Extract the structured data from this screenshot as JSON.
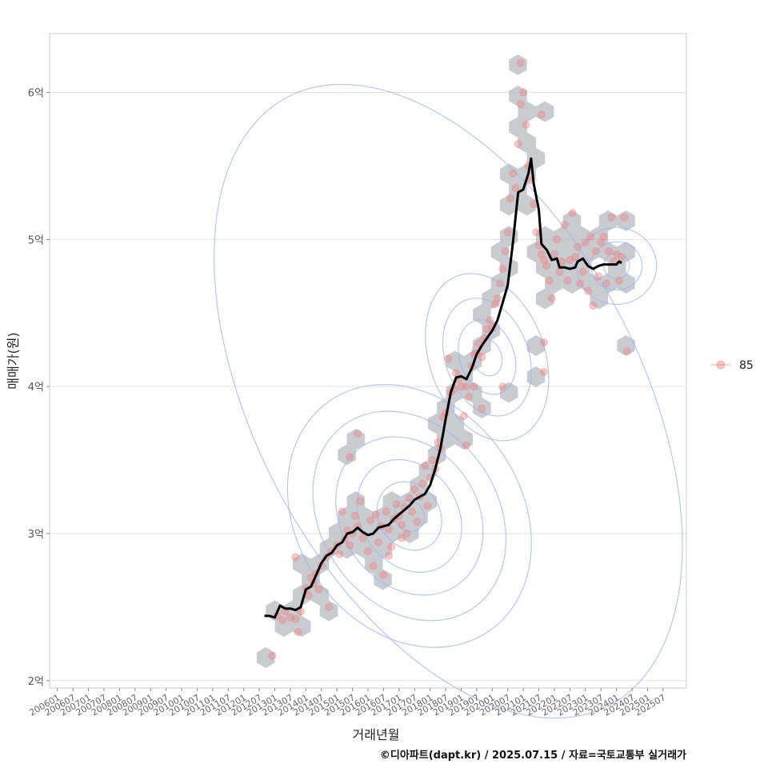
{
  "chart_data": {
    "type": "scatter",
    "xlabel": "거래년월",
    "ylabel": "매매가(원)",
    "x_ticks": [
      "200601",
      "200607",
      "200701",
      "200707",
      "200801",
      "200807",
      "200901",
      "200907",
      "201001",
      "201007",
      "201101",
      "201107",
      "201201",
      "201207",
      "201301",
      "201307",
      "201401",
      "201407",
      "201501",
      "201507",
      "201601",
      "201607",
      "201701",
      "201707",
      "201801",
      "201807",
      "201901",
      "201907",
      "202001",
      "202007",
      "202101",
      "202107",
      "202201",
      "202207",
      "202301",
      "202307",
      "202401",
      "202407",
      "202501",
      "202507"
    ],
    "y_ticks": [
      "2억",
      "3억",
      "4억",
      "5억",
      "6억"
    ],
    "y_tick_values": [
      2,
      3,
      4,
      5,
      6
    ],
    "y_unit": "억",
    "xlim": [
      "2005-10",
      "2026-04"
    ],
    "ylim": [
      1.95,
      6.4
    ],
    "grid": "horizontal",
    "legend": {
      "position": "right",
      "entries": [
        "85"
      ]
    },
    "caption": "©디아파트(dapt.kr) / 2025.07.15 / 자료=국토교통부 실거래가",
    "colors": {
      "points": "#f08080",
      "trend": "#000000",
      "density": "#9fb4ea",
      "hexbin": "#aab0b8"
    },
    "trend_line": [
      [
        "2012-09",
        2.44
      ],
      [
        "2012-11",
        2.44
      ],
      [
        "2013-01",
        2.43
      ],
      [
        "2013-03",
        2.51
      ],
      [
        "2013-05",
        2.49
      ],
      [
        "2013-07",
        2.49
      ],
      [
        "2013-09",
        2.48
      ],
      [
        "2013-11",
        2.5
      ],
      [
        "2014-01",
        2.62
      ],
      [
        "2014-03",
        2.64
      ],
      [
        "2014-05",
        2.72
      ],
      [
        "2014-07",
        2.8
      ],
      [
        "2014-09",
        2.85
      ],
      [
        "2014-11",
        2.87
      ],
      [
        "2015-01",
        2.92
      ],
      [
        "2015-03",
        2.94
      ],
      [
        "2015-05",
        3.0
      ],
      [
        "2015-07",
        3.01
      ],
      [
        "2015-09",
        3.04
      ],
      [
        "2015-11",
        3.01
      ],
      [
        "2016-01",
        2.99
      ],
      [
        "2016-03",
        3.0
      ],
      [
        "2016-05",
        3.04
      ],
      [
        "2016-07",
        3.05
      ],
      [
        "2016-09",
        3.06
      ],
      [
        "2016-11",
        3.1
      ],
      [
        "2017-01",
        3.13
      ],
      [
        "2017-03",
        3.16
      ],
      [
        "2017-05",
        3.19
      ],
      [
        "2017-07",
        3.23
      ],
      [
        "2017-09",
        3.25
      ],
      [
        "2017-11",
        3.27
      ],
      [
        "2018-01",
        3.33
      ],
      [
        "2018-03",
        3.44
      ],
      [
        "2018-05",
        3.58
      ],
      [
        "2018-07",
        3.78
      ],
      [
        "2018-09",
        3.96
      ],
      [
        "2018-11",
        4.06
      ],
      [
        "2019-01",
        4.07
      ],
      [
        "2019-03",
        4.05
      ],
      [
        "2019-05",
        4.12
      ],
      [
        "2019-07",
        4.22
      ],
      [
        "2019-09",
        4.28
      ],
      [
        "2019-11",
        4.33
      ],
      [
        "2020-01",
        4.38
      ],
      [
        "2020-03",
        4.45
      ],
      [
        "2020-05",
        4.57
      ],
      [
        "2020-07",
        4.69
      ],
      [
        "2020-09",
        4.98
      ],
      [
        "2020-11",
        5.32
      ],
      [
        "2021-01",
        5.34
      ],
      [
        "2021-03",
        5.45
      ],
      [
        "2021-04",
        5.55
      ],
      [
        "2021-05",
        5.38
      ],
      [
        "2021-07",
        5.2
      ],
      [
        "2021-08",
        4.97
      ],
      [
        "2021-10",
        4.93
      ],
      [
        "2021-12",
        4.86
      ],
      [
        "2022-02",
        4.87
      ],
      [
        "2022-03",
        4.81
      ],
      [
        "2022-05",
        4.81
      ],
      [
        "2022-07",
        4.8
      ],
      [
        "2022-09",
        4.81
      ],
      [
        "2022-10",
        4.85
      ],
      [
        "2022-12",
        4.87
      ],
      [
        "2023-02",
        4.82
      ],
      [
        "2023-04",
        4.8
      ],
      [
        "2023-06",
        4.82
      ],
      [
        "2023-08",
        4.83
      ],
      [
        "2023-10",
        4.83
      ],
      [
        "2024-01",
        4.83
      ],
      [
        "2024-02",
        4.85
      ],
      [
        "2024-03",
        4.84
      ]
    ],
    "points": [
      [
        "2012-12",
        2.17
      ],
      [
        "2013-02",
        2.44
      ],
      [
        "2013-04",
        2.41
      ],
      [
        "2013-05",
        2.47
      ],
      [
        "2013-07",
        2.43
      ],
      [
        "2013-09",
        2.42
      ],
      [
        "2013-10",
        2.33
      ],
      [
        "2013-11",
        2.47
      ],
      [
        "2014-01",
        2.63
      ],
      [
        "2014-02",
        2.58
      ],
      [
        "2014-03",
        2.7
      ],
      [
        "2014-04",
        2.66
      ],
      [
        "2014-05",
        2.73
      ],
      [
        "2014-06",
        2.62
      ],
      [
        "2014-07",
        2.78
      ],
      [
        "2014-09",
        2.84
      ],
      [
        "2014-10",
        2.5
      ],
      [
        "2014-11",
        2.88
      ],
      [
        "2015-01",
        2.92
      ],
      [
        "2015-02",
        2.86
      ],
      [
        "2015-03",
        3.15
      ],
      [
        "2015-04",
        2.96
      ],
      [
        "2015-05",
        3.02
      ],
      [
        "2015-06",
        2.92
      ],
      [
        "2015-07",
        3.0
      ],
      [
        "2015-08",
        3.12
      ],
      [
        "2015-09",
        3.05
      ],
      [
        "2015-10",
        3.22
      ],
      [
        "2015-11",
        2.97
      ],
      [
        "2016-01",
        2.88
      ],
      [
        "2016-02",
        3.09
      ],
      [
        "2016-03",
        2.78
      ],
      [
        "2016-04",
        3.13
      ],
      [
        "2016-05",
        2.94
      ],
      [
        "2016-06",
        3.05
      ],
      [
        "2016-07",
        2.72
      ],
      [
        "2016-08",
        3.15
      ],
      [
        "2016-09",
        3.03
      ],
      [
        "2016-10",
        2.91
      ],
      [
        "2016-11",
        3.1
      ],
      [
        "2016-12",
        3.2
      ],
      [
        "2017-01",
        3.12
      ],
      [
        "2017-02",
        3.06
      ],
      [
        "2017-03",
        3.18
      ],
      [
        "2017-04",
        3.0
      ],
      [
        "2017-05",
        3.24
      ],
      [
        "2017-06",
        3.15
      ],
      [
        "2017-07",
        3.3
      ],
      [
        "2017-08",
        3.08
      ],
      [
        "2017-09",
        3.25
      ],
      [
        "2017-10",
        3.34
      ],
      [
        "2017-11",
        3.46
      ],
      [
        "2017-12",
        3.19
      ],
      [
        "2018-01",
        3.38
      ],
      [
        "2018-02",
        3.5
      ],
      [
        "2018-03",
        3.44
      ],
      [
        "2018-04",
        3.62
      ],
      [
        "2018-05",
        3.58
      ],
      [
        "2018-06",
        3.79
      ],
      [
        "2018-07",
        3.82
      ],
      [
        "2018-08",
        4.19
      ],
      [
        "2018-09",
        3.96
      ],
      [
        "2018-10",
        3.98
      ],
      [
        "2018-11",
        4.09
      ],
      [
        "2018-12",
        4.05
      ],
      [
        "2019-01",
        4.0
      ],
      [
        "2019-02",
        3.8
      ],
      [
        "2019-03",
        4.0
      ],
      [
        "2019-04",
        3.93
      ],
      [
        "2019-05",
        4.14
      ],
      [
        "2019-06",
        4.22
      ],
      [
        "2019-07",
        4.23
      ],
      [
        "2019-08",
        4.29
      ],
      [
        "2019-09",
        4.2
      ],
      [
        "2019-10",
        4.33
      ],
      [
        "2019-11",
        4.39
      ],
      [
        "2019-12",
        4.45
      ],
      [
        "2020-01",
        4.4
      ],
      [
        "2020-02",
        4.56
      ],
      [
        "2020-03",
        4.6
      ],
      [
        "2020-04",
        4.7
      ],
      [
        "2020-05",
        4.8
      ],
      [
        "2020-06",
        4.92
      ],
      [
        "2020-07",
        5.05
      ],
      [
        "2020-08",
        5.28
      ],
      [
        "2020-09",
        5.45
      ],
      [
        "2020-10",
        5.35
      ],
      [
        "2020-11",
        5.65
      ],
      [
        "2020-12",
        5.92
      ],
      [
        "2021-01",
        6.0
      ],
      [
        "2021-02",
        5.78
      ],
      [
        "2021-03",
        5.5
      ],
      [
        "2021-04",
        5.4
      ],
      [
        "2021-05",
        5.24
      ],
      [
        "2021-06",
        5.05
      ],
      [
        "2021-07",
        4.96
      ],
      [
        "2021-08",
        4.9
      ],
      [
        "2021-09",
        4.86
      ],
      [
        "2021-10",
        4.82
      ],
      [
        "2021-11",
        4.72
      ],
      [
        "2021-12",
        4.6
      ],
      [
        "2022-01",
        4.9
      ],
      [
        "2022-02",
        5.0
      ],
      [
        "2022-03",
        4.78
      ],
      [
        "2022-04",
        4.85
      ],
      [
        "2022-05",
        5.1
      ],
      [
        "2022-06",
        4.72
      ],
      [
        "2022-07",
        4.86
      ],
      [
        "2022-08",
        5.18
      ],
      [
        "2022-09",
        4.88
      ],
      [
        "2022-10",
        4.95
      ],
      [
        "2022-11",
        4.7
      ],
      [
        "2022-12",
        4.78
      ],
      [
        "2023-01",
        4.98
      ],
      [
        "2023-02",
        4.65
      ],
      [
        "2023-03",
        5.02
      ],
      [
        "2023-04",
        4.55
      ],
      [
        "2023-05",
        4.92
      ],
      [
        "2023-06",
        4.75
      ],
      [
        "2023-07",
        4.98
      ],
      [
        "2023-08",
        5.02
      ],
      [
        "2023-09",
        4.7
      ],
      [
        "2023-10",
        4.92
      ],
      [
        "2023-11",
        5.15
      ],
      [
        "2023-12",
        4.85
      ],
      [
        "2024-01",
        4.9
      ],
      [
        "2024-02",
        4.72
      ],
      [
        "2024-03",
        4.88
      ],
      [
        "2024-04",
        5.15
      ],
      [
        "2024-05",
        4.24
      ],
      [
        "2020-12",
        6.2
      ],
      [
        "2021-08",
        5.85
      ],
      [
        "2019-06",
        4.0
      ],
      [
        "2019-09",
        3.85
      ],
      [
        "2019-03",
        3.6
      ],
      [
        "2020-05",
        4.0
      ],
      [
        "2017-02",
        2.97
      ],
      [
        "2016-09",
        2.85
      ],
      [
        "2015-09",
        3.68
      ],
      [
        "2015-06",
        3.52
      ],
      [
        "2013-09",
        2.84
      ],
      [
        "2021-09",
        4.3
      ],
      [
        "2021-09",
        4.1
      ]
    ]
  }
}
